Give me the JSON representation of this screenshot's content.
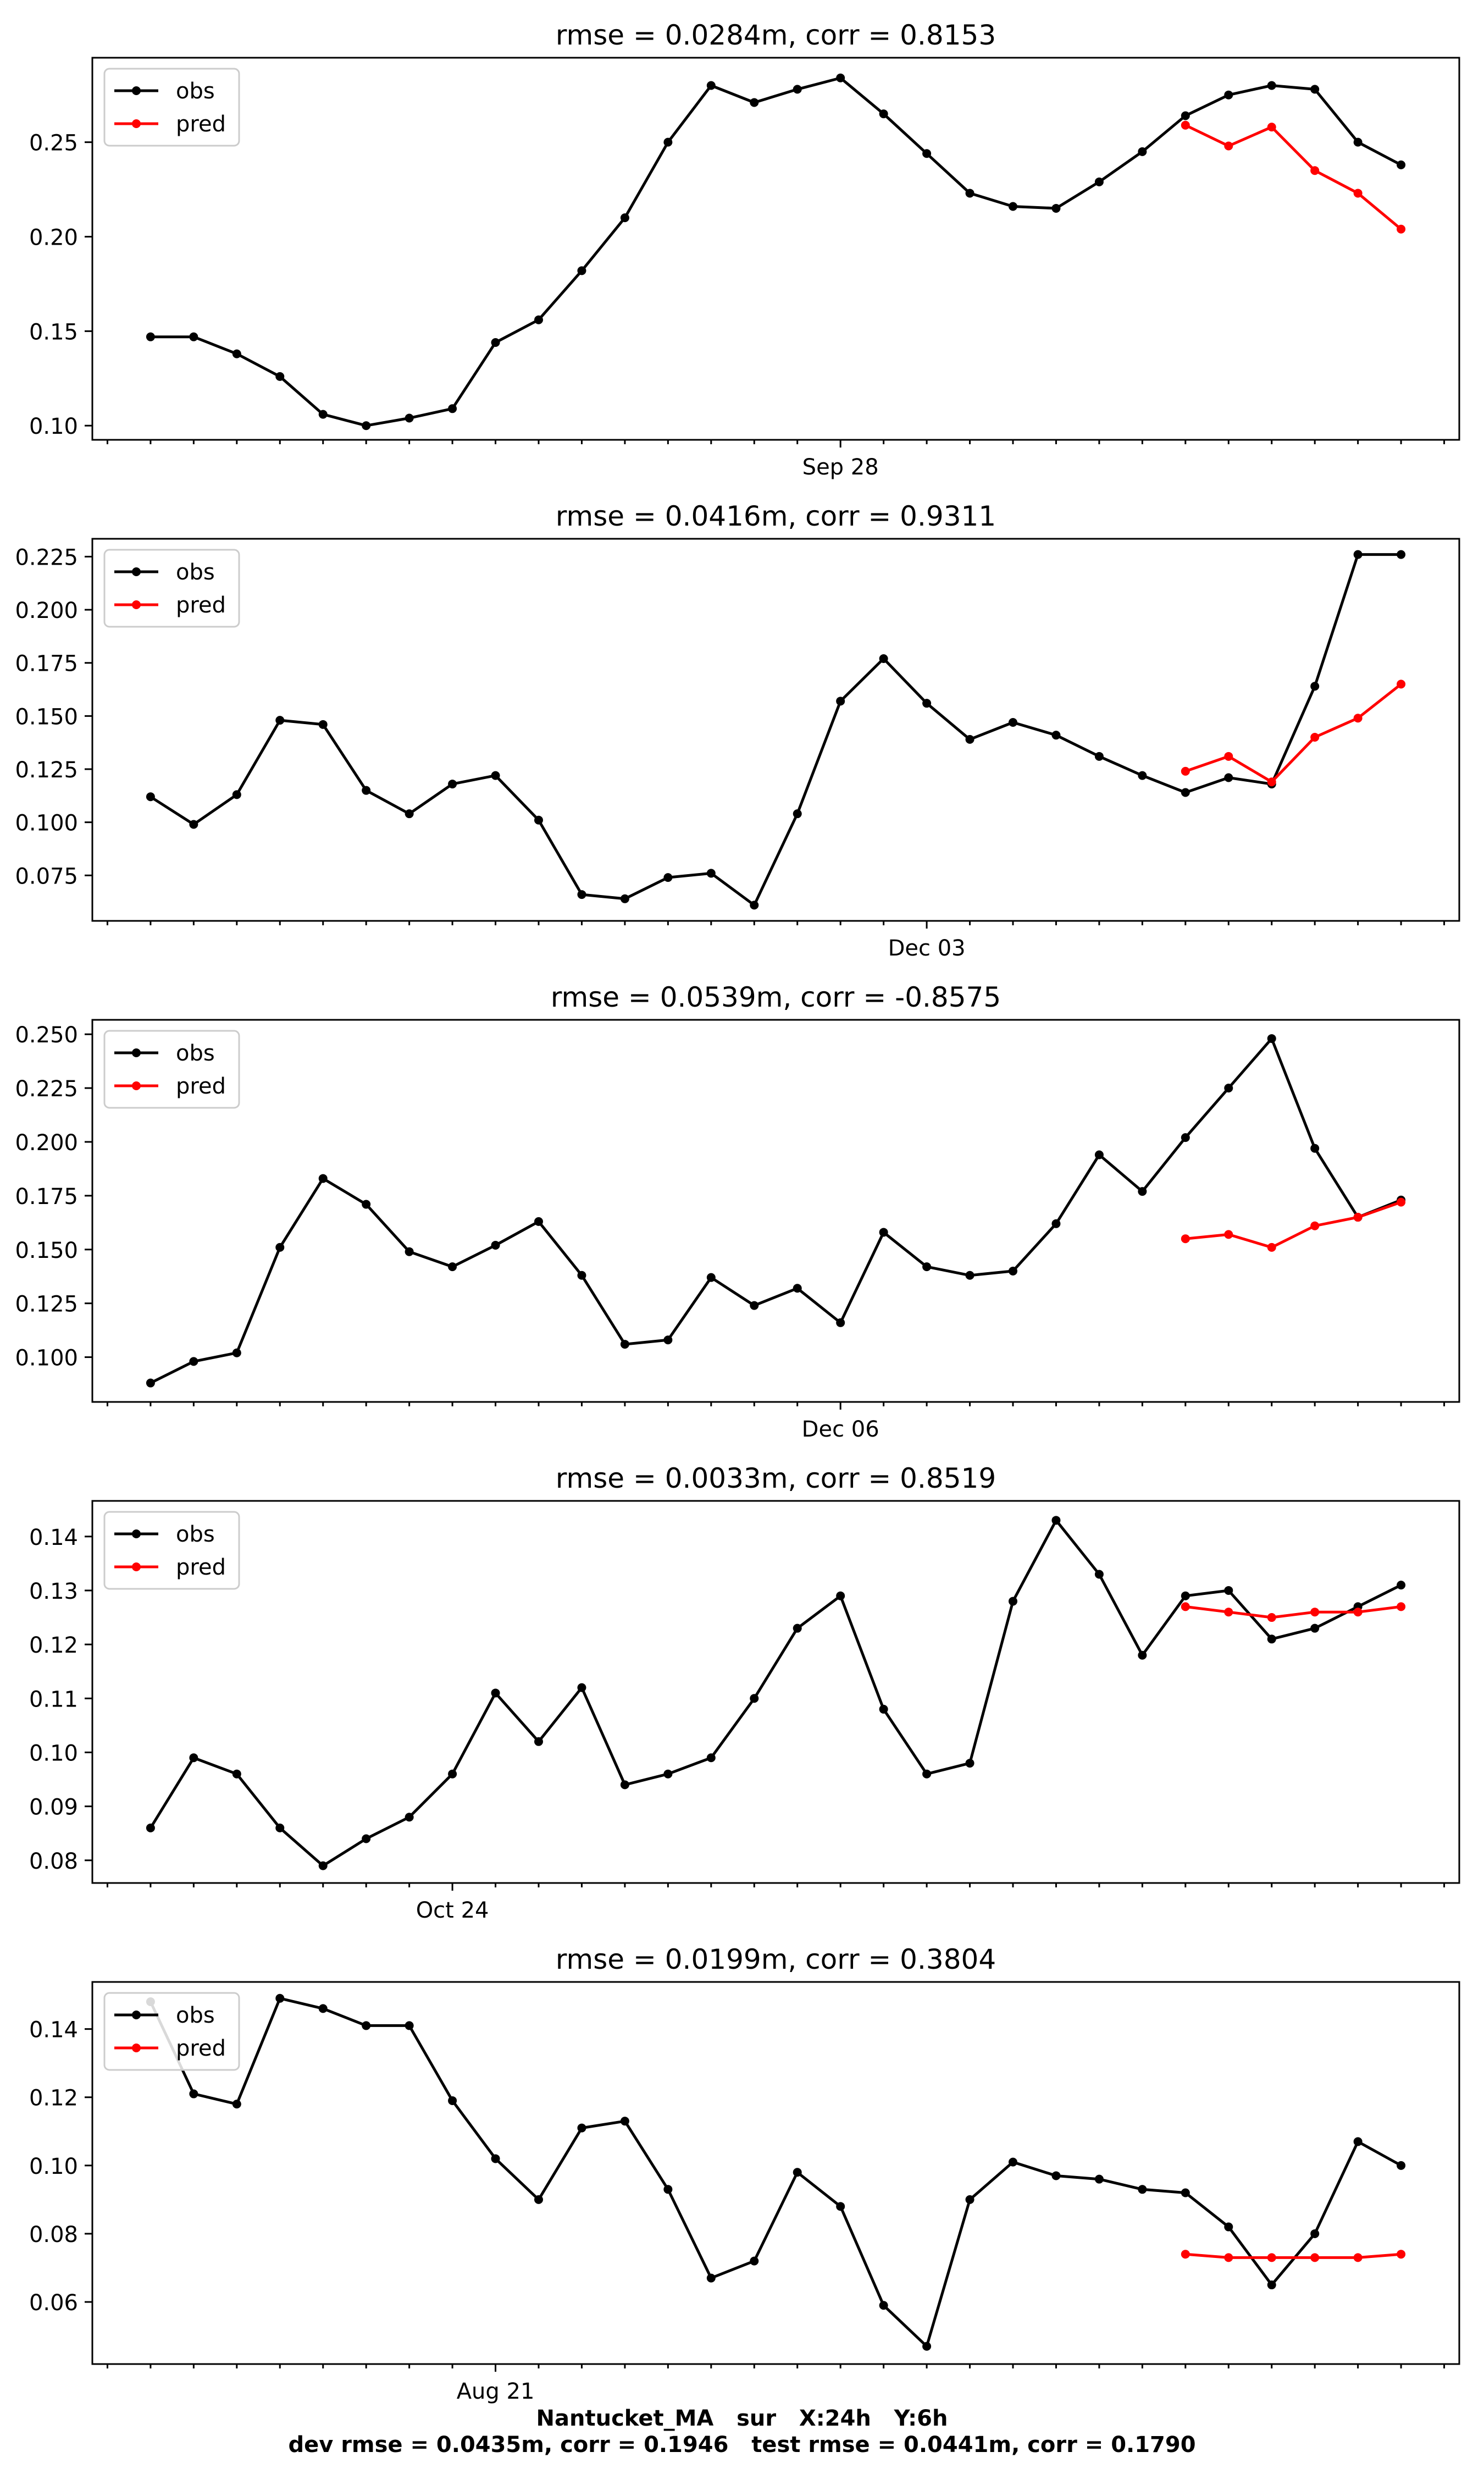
{
  "figure": {
    "footer_line1": "Nantucket_MA   sur   X:24h   Y:6h",
    "footer_line2": "dev rmse = 0.0435m, corr = 0.1946   test rmse = 0.0441m, corr = 0.1790"
  },
  "colors": {
    "obs": "#000000",
    "pred": "#ff0000"
  },
  "chart_data": [
    {
      "type": "line",
      "title": "rmse = 0.0284m, corr = 0.8153",
      "xlabel": "",
      "ylabel": "",
      "x_date_label": "Sep 28",
      "x_date_index": 16,
      "ylim": [
        0.0925,
        0.2947
      ],
      "yticks": [
        0.1,
        0.15,
        0.2,
        0.25
      ],
      "ytick_labels": [
        "0.10",
        "0.15",
        "0.20",
        "0.25"
      ],
      "grid": false,
      "legend": {
        "position": "top-left",
        "entries": [
          "obs",
          "pred"
        ]
      },
      "series": [
        {
          "name": "obs",
          "color": "#000000",
          "x_start": 0,
          "values": [
            0.147,
            0.147,
            0.138,
            0.126,
            0.106,
            0.1,
            0.104,
            0.109,
            0.144,
            0.156,
            0.182,
            0.21,
            0.25,
            0.28,
            0.271,
            0.278,
            0.284,
            0.265,
            0.244,
            0.223,
            0.216,
            0.215,
            0.229,
            0.245,
            0.264,
            0.275,
            0.28,
            0.278,
            0.25,
            0.238
          ]
        },
        {
          "name": "pred",
          "color": "#ff0000",
          "x_start": 24,
          "values": [
            0.259,
            0.248,
            0.258,
            0.235,
            0.223,
            0.204
          ]
        }
      ]
    },
    {
      "type": "line",
      "title": "rmse = 0.0416m, corr = 0.9311",
      "xlabel": "",
      "ylabel": "",
      "x_date_label": "Dec 03",
      "x_date_index": 18,
      "ylim": [
        0.0536,
        0.2334
      ],
      "yticks": [
        0.075,
        0.1,
        0.125,
        0.15,
        0.175,
        0.2,
        0.225
      ],
      "ytick_labels": [
        "0.075",
        "0.100",
        "0.125",
        "0.150",
        "0.175",
        "0.200",
        "0.225"
      ],
      "grid": false,
      "legend": {
        "position": "top-left",
        "entries": [
          "obs",
          "pred"
        ]
      },
      "series": [
        {
          "name": "obs",
          "color": "#000000",
          "x_start": 0,
          "values": [
            0.112,
            0.099,
            0.113,
            0.148,
            0.146,
            0.115,
            0.104,
            0.118,
            0.122,
            0.101,
            0.066,
            0.064,
            0.074,
            0.076,
            0.061,
            0.104,
            0.157,
            0.177,
            0.156,
            0.139,
            0.147,
            0.141,
            0.131,
            0.122,
            0.114,
            0.121,
            0.118,
            0.164,
            0.226,
            0.226
          ]
        },
        {
          "name": "pred",
          "color": "#ff0000",
          "x_start": 24,
          "values": [
            0.124,
            0.131,
            0.119,
            0.14,
            0.149,
            0.165
          ]
        }
      ]
    },
    {
      "type": "line",
      "title": "rmse = 0.0539m, corr = -0.8575",
      "xlabel": "",
      "ylabel": "",
      "x_date_label": "Dec 06",
      "x_date_index": 16,
      "ylim": [
        0.0792,
        0.2567
      ],
      "yticks": [
        0.1,
        0.125,
        0.15,
        0.175,
        0.2,
        0.225,
        0.25
      ],
      "ytick_labels": [
        "0.100",
        "0.125",
        "0.150",
        "0.175",
        "0.200",
        "0.225",
        "0.250"
      ],
      "grid": false,
      "legend": {
        "position": "top-left",
        "entries": [
          "obs",
          "pred"
        ]
      },
      "series": [
        {
          "name": "obs",
          "color": "#000000",
          "x_start": 0,
          "values": [
            0.088,
            0.098,
            0.102,
            0.151,
            0.183,
            0.171,
            0.149,
            0.142,
            0.152,
            0.163,
            0.138,
            0.106,
            0.108,
            0.137,
            0.124,
            0.132,
            0.116,
            0.158,
            0.142,
            0.138,
            0.14,
            0.162,
            0.194,
            0.177,
            0.202,
            0.225,
            0.248,
            0.197,
            0.165,
            0.173
          ]
        },
        {
          "name": "pred",
          "color": "#ff0000",
          "x_start": 24,
          "values": [
            0.155,
            0.157,
            0.151,
            0.161,
            0.165,
            0.172
          ]
        }
      ]
    },
    {
      "type": "line",
      "title": "rmse = 0.0033m, corr = 0.8519",
      "xlabel": "",
      "ylabel": "",
      "x_date_label": "Oct 24",
      "x_date_index": 7,
      "ylim": [
        0.0758,
        0.1466
      ],
      "yticks": [
        0.08,
        0.09,
        0.1,
        0.11,
        0.12,
        0.13,
        0.14
      ],
      "ytick_labels": [
        "0.08",
        "0.09",
        "0.10",
        "0.11",
        "0.12",
        "0.13",
        "0.14"
      ],
      "grid": false,
      "legend": {
        "position": "top-left",
        "entries": [
          "obs",
          "pred"
        ]
      },
      "series": [
        {
          "name": "obs",
          "color": "#000000",
          "x_start": 0,
          "values": [
            0.086,
            0.099,
            0.096,
            0.086,
            0.079,
            0.084,
            0.088,
            0.096,
            0.111,
            0.102,
            0.112,
            0.094,
            0.096,
            0.099,
            0.11,
            0.123,
            0.129,
            0.108,
            0.096,
            0.098,
            0.128,
            0.143,
            0.133,
            0.118,
            0.129,
            0.13,
            0.121,
            0.123,
            0.127,
            0.131
          ]
        },
        {
          "name": "pred",
          "color": "#ff0000",
          "x_start": 24,
          "values": [
            0.127,
            0.126,
            0.125,
            0.126,
            0.126,
            0.127
          ]
        }
      ]
    },
    {
      "type": "line",
      "title": "rmse = 0.0199m, corr = 0.3804",
      "xlabel": "",
      "ylabel": "",
      "x_date_label": "Aug 21",
      "x_date_index": 8,
      "ylim": [
        0.0418,
        0.1538
      ],
      "yticks": [
        0.06,
        0.08,
        0.1,
        0.12,
        0.14
      ],
      "ytick_labels": [
        "0.06",
        "0.08",
        "0.10",
        "0.12",
        "0.14"
      ],
      "grid": false,
      "legend": {
        "position": "top-left",
        "entries": [
          "obs",
          "pred"
        ]
      },
      "series": [
        {
          "name": "obs",
          "color": "#000000",
          "x_start": 0,
          "values": [
            0.148,
            0.121,
            0.118,
            0.149,
            0.146,
            0.141,
            0.141,
            0.119,
            0.102,
            0.09,
            0.111,
            0.113,
            0.093,
            0.067,
            0.072,
            0.098,
            0.088,
            0.059,
            0.047,
            0.09,
            0.101,
            0.097,
            0.096,
            0.093,
            0.092,
            0.082,
            0.065,
            0.08,
            0.107,
            0.1
          ]
        },
        {
          "name": "pred",
          "color": "#ff0000",
          "x_start": 24,
          "values": [
            0.074,
            0.073,
            0.073,
            0.073,
            0.073,
            0.074
          ]
        }
      ]
    }
  ]
}
